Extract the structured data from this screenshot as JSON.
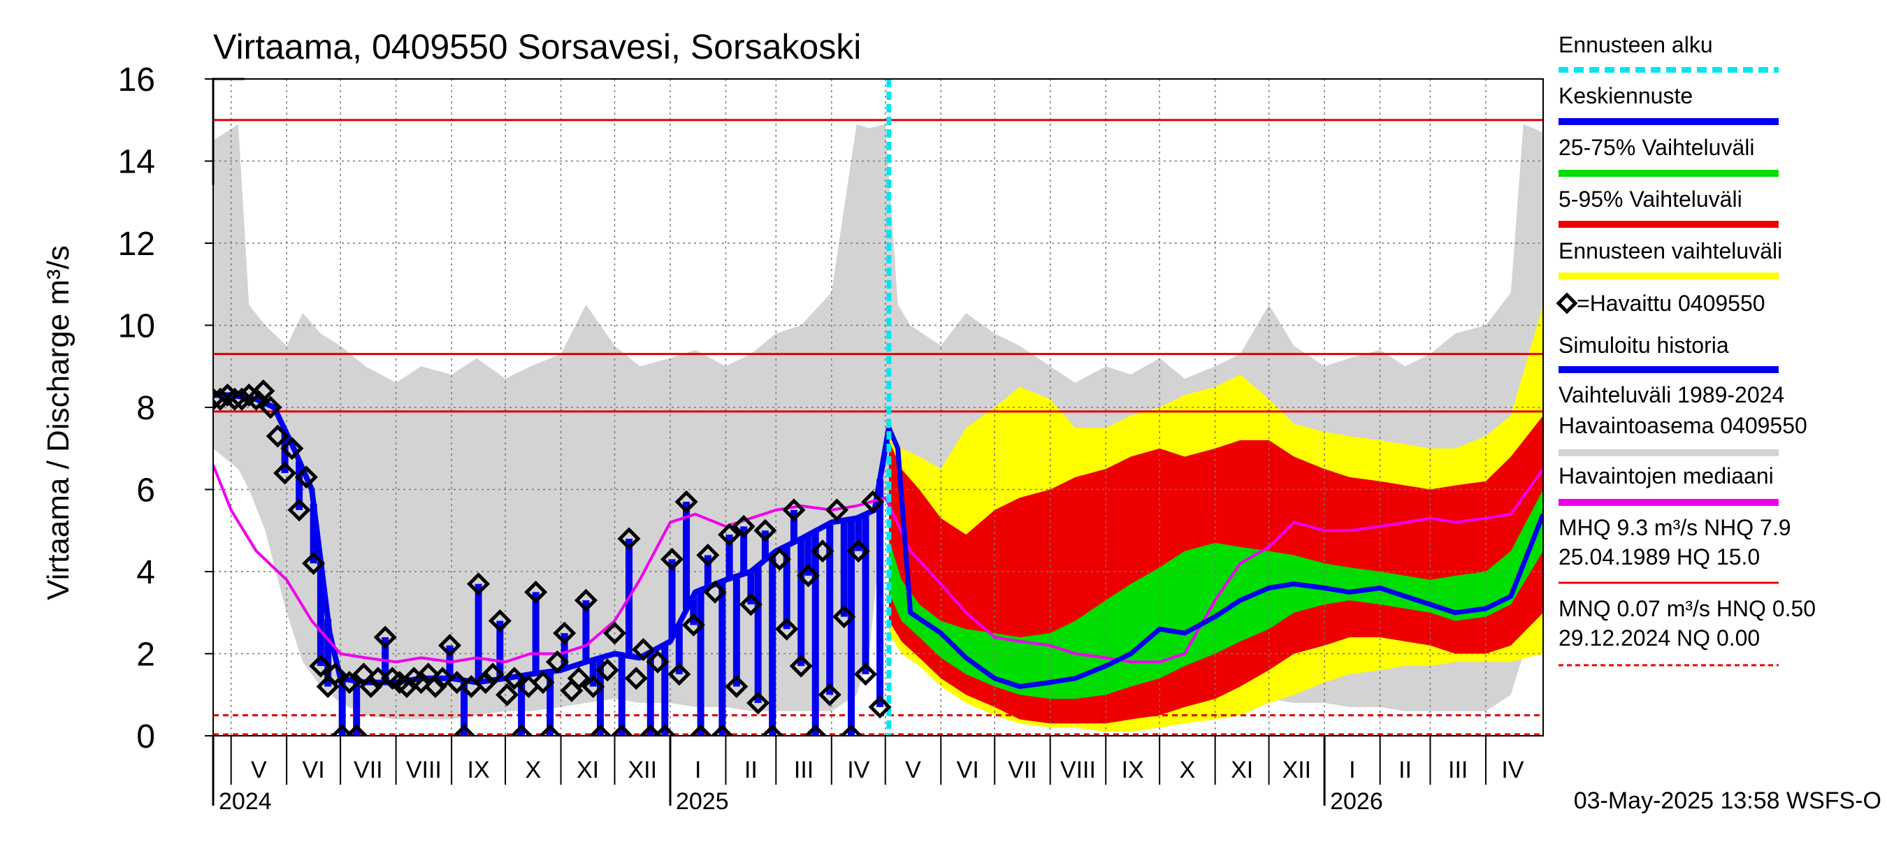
{
  "chart_data": {
    "type": "area",
    "title": "Virtaama, 0409550 Sorsavesi, Sorsakoski",
    "ylabel": "Virtaama / Discharge    m³/s",
    "ylim": [
      0,
      16
    ],
    "yticks": [
      0,
      2,
      4,
      6,
      8,
      10,
      12,
      14,
      16
    ],
    "x_start": "2024-04-21",
    "x_end": "2026-05-03",
    "month_labels": [
      {
        "label": "V",
        "start": "2024-05-01",
        "end": "2024-06-01"
      },
      {
        "label": "VI",
        "start": "2024-06-01",
        "end": "2024-07-01"
      },
      {
        "label": "VII",
        "start": "2024-07-01",
        "end": "2024-08-01"
      },
      {
        "label": "VIII",
        "start": "2024-08-01",
        "end": "2024-09-01"
      },
      {
        "label": "IX",
        "start": "2024-09-01",
        "end": "2024-10-01"
      },
      {
        "label": "X",
        "start": "2024-10-01",
        "end": "2024-11-01"
      },
      {
        "label": "XI",
        "start": "2024-11-01",
        "end": "2024-12-01"
      },
      {
        "label": "XII",
        "start": "2024-12-01",
        "end": "2025-01-01"
      },
      {
        "label": "I",
        "start": "2025-01-01",
        "end": "2025-02-01"
      },
      {
        "label": "II",
        "start": "2025-02-01",
        "end": "2025-03-01"
      },
      {
        "label": "III",
        "start": "2025-03-01",
        "end": "2025-04-01"
      },
      {
        "label": "IV",
        "start": "2025-04-01",
        "end": "2025-05-01"
      },
      {
        "label": "V",
        "start": "2025-05-01",
        "end": "2025-06-01"
      },
      {
        "label": "VI",
        "start": "2025-06-01",
        "end": "2025-07-01"
      },
      {
        "label": "VII",
        "start": "2025-07-01",
        "end": "2025-08-01"
      },
      {
        "label": "VIII",
        "start": "2025-08-01",
        "end": "2025-09-01"
      },
      {
        "label": "IX",
        "start": "2025-09-01",
        "end": "2025-10-01"
      },
      {
        "label": "X",
        "start": "2025-10-01",
        "end": "2025-11-01"
      },
      {
        "label": "XI",
        "start": "2025-11-01",
        "end": "2025-12-01"
      },
      {
        "label": "XII",
        "start": "2025-12-01",
        "end": "2026-01-01"
      },
      {
        "label": "I",
        "start": "2026-01-01",
        "end": "2026-02-01"
      },
      {
        "label": "II",
        "start": "2026-02-01",
        "end": "2026-03-01"
      },
      {
        "label": "III",
        "start": "2026-03-01",
        "end": "2026-04-01"
      },
      {
        "label": "IV",
        "start": "2026-04-01",
        "end": "2026-05-01"
      }
    ],
    "year_labels": [
      {
        "label": "2024",
        "date": "2024-04-21"
      },
      {
        "label": "2025",
        "date": "2025-01-01"
      },
      {
        "label": "2026",
        "date": "2026-01-01"
      }
    ],
    "forecast_start": "2025-05-03",
    "reference_lines": [
      {
        "name": "HQ",
        "value": 15.0,
        "color": "#e00000",
        "style": "solid"
      },
      {
        "name": "MHQ",
        "value": 9.3,
        "color": "#e00000",
        "style": "solid"
      },
      {
        "name": "NHQ",
        "value": 7.9,
        "color": "#e00000",
        "style": "solid"
      },
      {
        "name": "HNQ",
        "value": 0.5,
        "color": "#e00000",
        "style": "dashed"
      },
      {
        "name": "NQ",
        "value": 0.0,
        "color": "#e00000",
        "style": "dashed"
      }
    ],
    "historical_range": {
      "dates": [
        "2024-04-21",
        "2024-05-05",
        "2024-05-11",
        "2024-05-20",
        "2024-06-01",
        "2024-06-10",
        "2024-06-20",
        "2024-07-01",
        "2024-07-15",
        "2024-08-01",
        "2024-08-15",
        "2024-09-01",
        "2024-09-15",
        "2024-10-01",
        "2024-10-15",
        "2024-11-01",
        "2024-11-15",
        "2024-12-01",
        "2024-12-15",
        "2025-01-01",
        "2025-01-15",
        "2025-02-01",
        "2025-02-15",
        "2025-03-01",
        "2025-03-15",
        "2025-04-01",
        "2025-04-15",
        "2025-04-22",
        "2025-05-01",
        "2025-05-08",
        "2025-05-15",
        "2025-06-01",
        "2025-06-15",
        "2025-07-01",
        "2025-07-15",
        "2025-08-01",
        "2025-08-15",
        "2025-09-01",
        "2025-09-15",
        "2025-10-01",
        "2025-10-15",
        "2025-11-01",
        "2025-11-15",
        "2025-12-01",
        "2025-12-15",
        "2026-01-01",
        "2026-01-15",
        "2026-02-01",
        "2026-02-15",
        "2026-03-01",
        "2026-03-15",
        "2026-04-01",
        "2026-04-15",
        "2026-04-22",
        "2026-05-03"
      ],
      "low": [
        7.0,
        6.5,
        6.0,
        5.0,
        3.0,
        1.8,
        1.2,
        0.8,
        0.5,
        0.4,
        0.4,
        0.4,
        0.5,
        0.6,
        0.6,
        0.7,
        0.8,
        0.9,
        0.8,
        0.8,
        0.7,
        0.7,
        0.6,
        0.6,
        0.6,
        0.6,
        1.0,
        2.0,
        6.0,
        5.0,
        3.5,
        1.8,
        1.2,
        0.7,
        0.5,
        0.4,
        0.4,
        0.4,
        0.5,
        0.6,
        0.6,
        0.7,
        0.8,
        0.9,
        0.8,
        0.8,
        0.7,
        0.7,
        0.6,
        0.6,
        0.6,
        0.6,
        1.0,
        2.0,
        6.0
      ],
      "high": [
        14.5,
        14.9,
        10.5,
        10.0,
        9.5,
        10.3,
        9.8,
        9.5,
        9.0,
        8.6,
        9.0,
        8.8,
        9.2,
        8.7,
        9.0,
        9.3,
        10.5,
        9.5,
        9.0,
        9.2,
        9.4,
        9.0,
        9.3,
        9.8,
        10.0,
        10.8,
        14.9,
        14.8,
        14.9,
        10.5,
        10.0,
        9.5,
        10.3,
        9.8,
        9.5,
        9.0,
        8.6,
        9.0,
        8.8,
        9.2,
        8.7,
        9.0,
        9.3,
        10.5,
        9.5,
        9.0,
        9.2,
        9.4,
        9.0,
        9.3,
        9.8,
        10.0,
        10.8,
        14.9,
        14.7
      ]
    },
    "forecast_bands": {
      "dates": [
        "2025-05-03",
        "2025-05-10",
        "2025-05-20",
        "2025-06-01",
        "2025-06-15",
        "2025-07-01",
        "2025-07-15",
        "2025-08-01",
        "2025-08-15",
        "2025-09-01",
        "2025-09-15",
        "2025-10-01",
        "2025-10-15",
        "2025-11-01",
        "2025-11-15",
        "2025-12-01",
        "2025-12-15",
        "2026-01-01",
        "2026-01-15",
        "2026-02-01",
        "2026-02-15",
        "2026-03-01",
        "2026-03-15",
        "2026-04-01",
        "2026-04-15",
        "2026-05-03"
      ],
      "p0": [
        2.5,
        2.0,
        1.7,
        1.2,
        0.8,
        0.5,
        0.3,
        0.2,
        0.2,
        0.1,
        0.1,
        0.2,
        0.3,
        0.4,
        0.5,
        0.8,
        1.0,
        1.3,
        1.5,
        1.6,
        1.7,
        1.7,
        1.8,
        1.8,
        1.8,
        2.0
      ],
      "p5": [
        2.8,
        2.3,
        1.9,
        1.4,
        1.0,
        0.7,
        0.4,
        0.3,
        0.3,
        0.3,
        0.4,
        0.5,
        0.7,
        0.9,
        1.2,
        1.6,
        2.0,
        2.2,
        2.4,
        2.4,
        2.3,
        2.2,
        2.0,
        2.0,
        2.2,
        3.0
      ],
      "p25": [
        3.5,
        2.8,
        2.4,
        1.9,
        1.5,
        1.2,
        1.0,
        0.9,
        0.9,
        1.0,
        1.2,
        1.4,
        1.7,
        2.0,
        2.3,
        2.6,
        3.0,
        3.2,
        3.3,
        3.2,
        3.1,
        3.0,
        2.8,
        2.9,
        3.2,
        4.5
      ],
      "p75": [
        4.8,
        3.8,
        3.2,
        2.8,
        2.6,
        2.5,
        2.4,
        2.5,
        2.8,
        3.3,
        3.7,
        4.1,
        4.5,
        4.7,
        4.6,
        4.5,
        4.4,
        4.2,
        4.1,
        4.0,
        3.9,
        3.8,
        3.9,
        4.0,
        4.5,
        6.0
      ],
      "p95": [
        7.2,
        6.5,
        6.0,
        5.3,
        4.9,
        5.5,
        5.8,
        6.0,
        6.3,
        6.5,
        6.8,
        7.0,
        6.8,
        7.0,
        7.2,
        7.2,
        6.8,
        6.5,
        6.3,
        6.2,
        6.1,
        6.0,
        6.1,
        6.2,
        6.8,
        7.8
      ],
      "p100": [
        7.4,
        7.0,
        6.8,
        6.5,
        7.5,
        8.0,
        8.5,
        8.2,
        7.5,
        7.5,
        7.8,
        8.0,
        8.3,
        8.5,
        8.8,
        8.2,
        7.6,
        7.4,
        7.3,
        7.2,
        7.1,
        7.0,
        7.0,
        7.3,
        7.8,
        10.5
      ]
    },
    "series": [
      {
        "name": "Keskiennuste",
        "color": "#0000ee",
        "x": [
          "2025-05-03",
          "2025-05-08",
          "2025-05-15",
          "2025-06-01",
          "2025-06-15",
          "2025-07-01",
          "2025-07-15",
          "2025-08-01",
          "2025-08-15",
          "2025-09-01",
          "2025-09-15",
          "2025-10-01",
          "2025-10-15",
          "2025-11-01",
          "2025-11-15",
          "2025-12-01",
          "2025-12-15",
          "2026-01-01",
          "2026-01-15",
          "2026-02-01",
          "2026-02-15",
          "2026-03-01",
          "2026-03-15",
          "2026-04-01",
          "2026-04-15",
          "2026-05-03"
        ],
        "y": [
          7.5,
          7.0,
          3.0,
          2.5,
          1.9,
          1.4,
          1.2,
          1.3,
          1.4,
          1.7,
          2.0,
          2.6,
          2.5,
          2.9,
          3.3,
          3.6,
          3.7,
          3.6,
          3.5,
          3.6,
          3.4,
          3.2,
          3.0,
          3.1,
          3.4,
          5.4
        ]
      },
      {
        "name": "Simuloitu historia",
        "color": "#0000ee",
        "x": [
          "2024-04-21",
          "2024-05-01",
          "2024-05-15",
          "2024-05-25",
          "2024-06-05",
          "2024-06-15",
          "2024-06-25",
          "2024-07-01",
          "2024-07-15",
          "2024-08-01",
          "2024-08-15",
          "2024-09-01",
          "2024-09-15",
          "2024-10-01",
          "2024-10-15",
          "2024-11-01",
          "2024-11-15",
          "2024-12-01",
          "2024-12-15",
          "2025-01-01",
          "2025-01-15",
          "2025-02-01",
          "2025-02-15",
          "2025-03-01",
          "2025-03-15",
          "2025-04-01",
          "2025-04-15",
          "2025-04-25",
          "2025-05-03"
        ],
        "y": [
          8.3,
          8.3,
          8.2,
          8.0,
          7.0,
          6.0,
          2.5,
          1.4,
          1.3,
          1.3,
          1.4,
          1.4,
          1.3,
          1.4,
          1.5,
          1.6,
          1.8,
          2.0,
          1.9,
          2.3,
          3.5,
          3.8,
          4.0,
          4.5,
          4.8,
          5.2,
          5.3,
          5.5,
          7.5
        ]
      },
      {
        "name": "Havaintojen mediaani",
        "color": "#ee00ee",
        "x": [
          "2024-04-21",
          "2024-05-01",
          "2024-05-15",
          "2024-06-01",
          "2024-06-15",
          "2024-07-01",
          "2024-07-15",
          "2024-08-01",
          "2024-08-15",
          "2024-09-01",
          "2024-09-15",
          "2024-10-01",
          "2024-10-15",
          "2024-11-01",
          "2024-11-15",
          "2024-12-01",
          "2024-12-15",
          "2025-01-01",
          "2025-01-15",
          "2025-02-01",
          "2025-02-15",
          "2025-03-01",
          "2025-03-15",
          "2025-04-01",
          "2025-04-15",
          "2025-05-01",
          "2025-05-15",
          "2025-06-01",
          "2025-06-15",
          "2025-07-01",
          "2025-07-15",
          "2025-08-01",
          "2025-08-15",
          "2025-09-01",
          "2025-09-15",
          "2025-10-01",
          "2025-10-15",
          "2025-11-01",
          "2025-11-15",
          "2025-12-01",
          "2025-12-15",
          "2026-01-01",
          "2026-01-15",
          "2026-02-01",
          "2026-02-15",
          "2026-03-01",
          "2026-03-15",
          "2026-04-01",
          "2026-04-15",
          "2026-05-03"
        ],
        "y": [
          6.6,
          5.5,
          4.5,
          3.8,
          2.8,
          2.0,
          1.9,
          1.8,
          1.9,
          1.8,
          1.9,
          1.8,
          2.0,
          2.0,
          2.2,
          2.8,
          3.8,
          5.2,
          5.4,
          5.1,
          5.3,
          5.5,
          5.6,
          5.5,
          5.6,
          5.8,
          4.5,
          3.7,
          3.0,
          2.4,
          2.3,
          2.2,
          2.0,
          1.9,
          1.8,
          1.8,
          2.0,
          3.3,
          4.2,
          4.6,
          5.2,
          5.0,
          5.0,
          5.1,
          5.2,
          5.3,
          5.2,
          5.3,
          5.4,
          6.5
        ]
      }
    ],
    "observed": {
      "name": "=Havaittu 0409550",
      "x": [
        "2024-04-21",
        "2024-04-25",
        "2024-04-29",
        "2024-05-03",
        "2024-05-07",
        "2024-05-11",
        "2024-05-15",
        "2024-05-19",
        "2024-05-23",
        "2024-05-27",
        "2024-05-31",
        "2024-06-04",
        "2024-06-08",
        "2024-06-12",
        "2024-06-16",
        "2024-06-20",
        "2024-06-24",
        "2024-06-28",
        "2024-07-02",
        "2024-07-06",
        "2024-07-10",
        "2024-07-14",
        "2024-07-18",
        "2024-07-22",
        "2024-07-26",
        "2024-07-30",
        "2024-08-03",
        "2024-08-07",
        "2024-08-11",
        "2024-08-15",
        "2024-08-19",
        "2024-08-23",
        "2024-08-27",
        "2024-08-31",
        "2024-09-04",
        "2024-09-08",
        "2024-09-12",
        "2024-09-16",
        "2024-09-20",
        "2024-09-24",
        "2024-09-28",
        "2024-10-02",
        "2024-10-06",
        "2024-10-10",
        "2024-10-14",
        "2024-10-18",
        "2024-10-22",
        "2024-10-26",
        "2024-10-30",
        "2024-11-03",
        "2024-11-07",
        "2024-11-11",
        "2024-11-15",
        "2024-11-19",
        "2024-11-23",
        "2024-11-27",
        "2024-12-01",
        "2024-12-05",
        "2024-12-09",
        "2024-12-13",
        "2024-12-17",
        "2024-12-21",
        "2024-12-25",
        "2024-12-29",
        "2025-01-02",
        "2025-01-06",
        "2025-01-10",
        "2025-01-14",
        "2025-01-18",
        "2025-01-22",
        "2025-01-26",
        "2025-01-30",
        "2025-02-03",
        "2025-02-07",
        "2025-02-11",
        "2025-02-15",
        "2025-02-19",
        "2025-02-23",
        "2025-02-27",
        "2025-03-03",
        "2025-03-07",
        "2025-03-11",
        "2025-03-15",
        "2025-03-19",
        "2025-03-23",
        "2025-03-27",
        "2025-03-31",
        "2025-04-04",
        "2025-04-08",
        "2025-04-12",
        "2025-04-16",
        "2025-04-20",
        "2025-04-24",
        "2025-04-28"
      ],
      "y": [
        8.2,
        8.2,
        8.3,
        8.2,
        8.2,
        8.3,
        8.2,
        8.4,
        8.0,
        7.3,
        6.4,
        7.0,
        5.5,
        6.3,
        4.2,
        1.7,
        1.2,
        1.5,
        0.0,
        1.3,
        0.0,
        1.5,
        1.2,
        1.4,
        2.4,
        1.4,
        1.3,
        1.2,
        1.4,
        1.3,
        1.5,
        1.2,
        1.4,
        2.2,
        1.3,
        0.0,
        1.2,
        3.7,
        1.3,
        1.5,
        2.8,
        1.0,
        1.4,
        0.0,
        1.2,
        3.5,
        1.3,
        0.0,
        1.8,
        2.5,
        1.1,
        1.4,
        3.3,
        1.2,
        0.0,
        1.6,
        2.5,
        0.0,
        4.8,
        1.4,
        2.1,
        0.0,
        1.8,
        0.0,
        4.3,
        1.5,
        5.7,
        2.7,
        0.0,
        4.4,
        3.5,
        0.0,
        4.9,
        1.2,
        5.1,
        3.2,
        0.8,
        5.0,
        0.0,
        4.3,
        2.6,
        5.5,
        1.7,
        3.9,
        0.0,
        4.5,
        1.0,
        5.5,
        2.9,
        0.0,
        4.5,
        1.5,
        5.7,
        0.7
      ]
    }
  },
  "legend": [
    {
      "label": "Ennusteen alku",
      "color": "#00e5f0",
      "kind": "dash"
    },
    {
      "label": "Keskiennuste",
      "color": "#0000ee",
      "kind": "line"
    },
    {
      "label": "25-75% Vaihteluväli",
      "color": "#00dd00",
      "kind": "line"
    },
    {
      "label": "5-95% Vaihteluväli",
      "color": "#ee0000",
      "kind": "line"
    },
    {
      "label": "Ennusteen vaihteluväli",
      "color": "#ffff00",
      "kind": "line"
    },
    {
      "label": "=Havaittu 0409550",
      "color": "#000000",
      "kind": "diamond"
    },
    {
      "label": "Simuloitu historia",
      "color": "#0000ee",
      "kind": "line"
    },
    {
      "label": "Vaihteluväli 1989-2024",
      "label2": " Havaintoasema 0409550",
      "color": "#d3d3d3",
      "kind": "line"
    },
    {
      "label": "Havaintojen mediaani",
      "color": "#ee00ee",
      "kind": "line"
    },
    {
      "label": "MHQ  9.3 m³/s NHQ  7.9",
      "label2": "25.04.1989 HQ 15.0",
      "color": "#ee0000",
      "kind": "line"
    },
    {
      "label": "MNQ 0.07 m³/s HNQ 0.50",
      "label2": "29.12.2024 NQ 0.00",
      "color": "#ee0000",
      "kind": "dashed"
    }
  ],
  "footer_timestamp": "03-May-2025 13:58 WSFS-O",
  "colors": {
    "historical": "#d3d3d3",
    "p0_p100": "#ffff00",
    "p5_p95": "#ee0000",
    "p25_p75": "#00dd00",
    "grid": "#777777"
  }
}
